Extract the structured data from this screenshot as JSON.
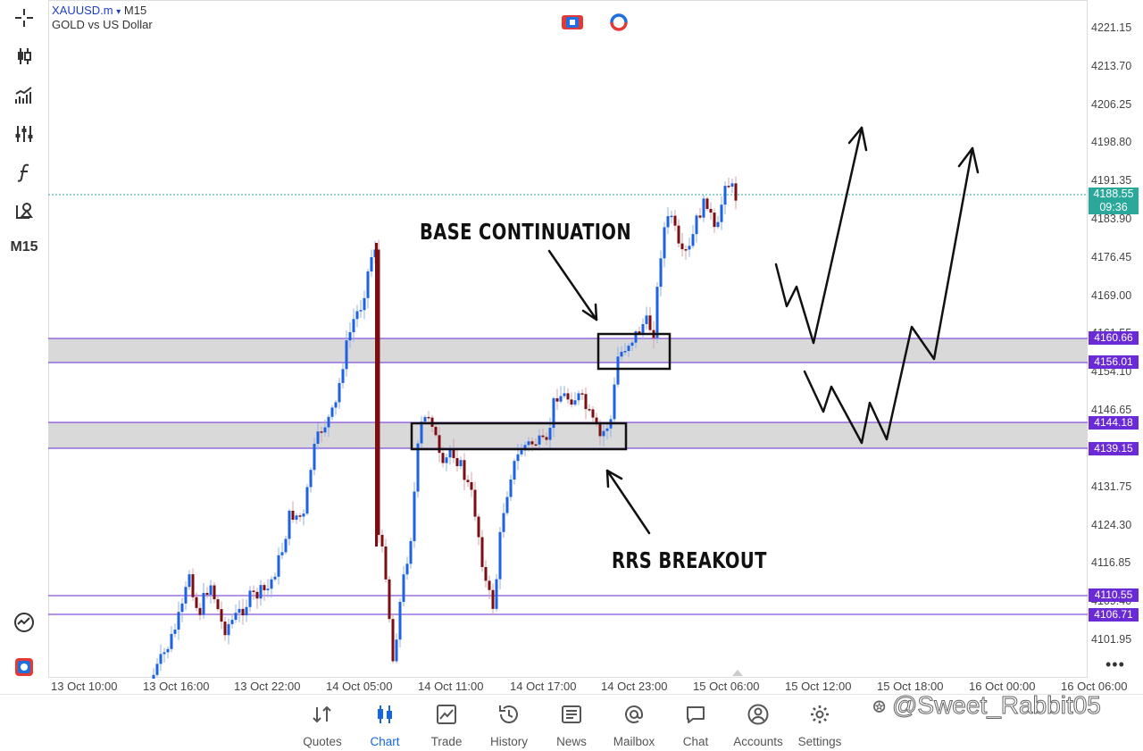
{
  "header": {
    "symbol": "XAUUSD.m",
    "dropdown_glyph": "▾",
    "timeframe": "M15",
    "description": "GOLD vs US Dollar"
  },
  "toolbar": {
    "items": [
      {
        "name": "crosshair-icon"
      },
      {
        "name": "candlestick-icon"
      },
      {
        "name": "indicators-icon"
      },
      {
        "name": "settings-sliders-icon"
      },
      {
        "name": "function-icon"
      },
      {
        "name": "objects-icon"
      }
    ],
    "timeframe_label": "M15",
    "bottom_items": [
      {
        "name": "trading-signals-icon"
      },
      {
        "name": "one-click-trading-icon"
      }
    ]
  },
  "price_axis": {
    "labels": [
      "4221.15",
      "4213.70",
      "4206.25",
      "4198.80",
      "4191.35",
      "4183.90",
      "4176.45",
      "4169.00",
      "4161.55",
      "4154.10",
      "4146.65",
      "4131.75",
      "4124.30",
      "4116.85",
      "4109.40",
      "4101.95"
    ],
    "current_price": "4188.55",
    "countdown": "09:36",
    "levels": [
      "4160.66",
      "4156.01",
      "4144.18",
      "4139.15",
      "4110.55",
      "4106.71"
    ]
  },
  "time_axis": {
    "labels": [
      "13 Oct 10:00",
      "13 Oct 16:00",
      "13 Oct 22:00",
      "14 Oct 05:00",
      "14 Oct 11:00",
      "14 Oct 17:00",
      "14 Oct 23:00",
      "15 Oct 06:00",
      "15 Oct 12:00",
      "15 Oct 18:00",
      "16 Oct 00:00",
      "16 Oct 06:00"
    ]
  },
  "annotations": {
    "base_continuation": "BASE CONTINUATION",
    "rrs_breakout": "RRS BREAKOUT"
  },
  "colors": {
    "bull": "#1f62e0",
    "bear": "#7a0e12",
    "level_line": "#6a2bd6",
    "zone_fill": "#d9d9d9",
    "current_price": "#2aa89a",
    "active_nav": "#1565e0"
  },
  "nav": {
    "items": [
      {
        "label": "Quotes",
        "icon": "quotes-icon"
      },
      {
        "label": "Chart",
        "icon": "chart-icon",
        "active": true
      },
      {
        "label": "Trade",
        "icon": "trade-icon"
      },
      {
        "label": "History",
        "icon": "history-icon"
      },
      {
        "label": "News",
        "icon": "news-icon"
      },
      {
        "label": "Mailbox",
        "icon": "mailbox-icon"
      },
      {
        "label": "Chat",
        "icon": "chat-icon"
      },
      {
        "label": "Accounts",
        "icon": "accounts-icon"
      },
      {
        "label": "Settings",
        "icon": "settings-icon"
      }
    ]
  },
  "watermark": "@Sweet_Rabbit05"
}
